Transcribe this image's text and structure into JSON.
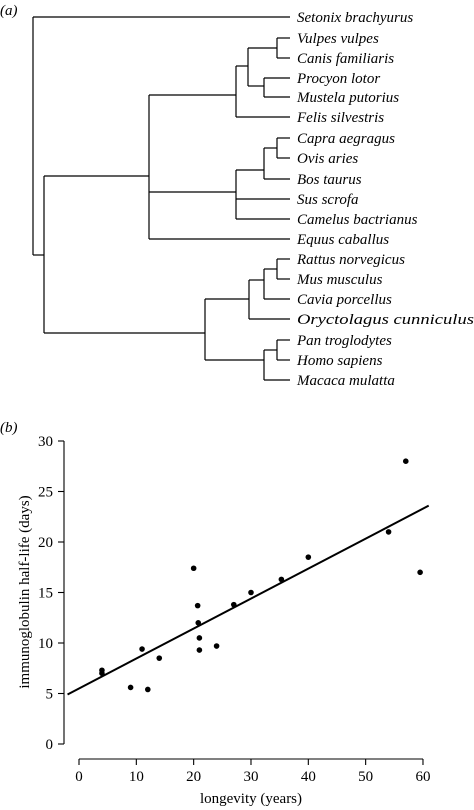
{
  "panel_a": {
    "label": "(a)",
    "taxa": [
      "Setonix brachyurus",
      "Vulpes vulpes",
      "Canis familiaris",
      "Procyon lotor",
      "Mustela putorius",
      "Felis silvestris",
      "Capra aegragus",
      "Ovis aries",
      "Bos taurus",
      "Sus scrofa",
      "Camelus bactrianus",
      "Equus caballus",
      "Rattus norvegicus",
      "Mus musculus",
      "Cavia porcellus",
      "Oryctolagus cunniculus",
      "Pan troglodytes",
      "Homo sapiens",
      "Macaca mulatta"
    ]
  },
  "panel_b": {
    "label": "(b)"
  },
  "chart_data": {
    "type": "scatter",
    "title": "",
    "xlabel": "longevity (years)",
    "ylabel": "immunoglobulin half-life (days)",
    "xlim": [
      -2,
      62
    ],
    "ylim": [
      -1,
      30.5
    ],
    "xticks": [
      0,
      10,
      20,
      30,
      40,
      50,
      60
    ],
    "yticks": [
      0,
      5,
      10,
      15,
      20,
      25,
      30
    ],
    "grid": false,
    "legend": "none",
    "points": [
      {
        "x": 4,
        "y": 7.3
      },
      {
        "x": 4,
        "y": 7.0
      },
      {
        "x": 9,
        "y": 5.6
      },
      {
        "x": 11,
        "y": 9.4
      },
      {
        "x": 12,
        "y": 5.4
      },
      {
        "x": 14,
        "y": 8.5
      },
      {
        "x": 20,
        "y": 17.4
      },
      {
        "x": 20.7,
        "y": 13.7
      },
      {
        "x": 20.8,
        "y": 12.0
      },
      {
        "x": 21,
        "y": 10.5
      },
      {
        "x": 21,
        "y": 9.3
      },
      {
        "x": 24,
        "y": 9.7
      },
      {
        "x": 27,
        "y": 13.8
      },
      {
        "x": 30,
        "y": 15.0
      },
      {
        "x": 35.3,
        "y": 16.3
      },
      {
        "x": 40,
        "y": 18.5
      },
      {
        "x": 54,
        "y": 21.0
      },
      {
        "x": 57,
        "y": 28.0
      },
      {
        "x": 59.5,
        "y": 17.0
      }
    ],
    "fit_line": {
      "x": [
        -2,
        61
      ],
      "y": [
        4.9,
        23.6
      ]
    }
  }
}
